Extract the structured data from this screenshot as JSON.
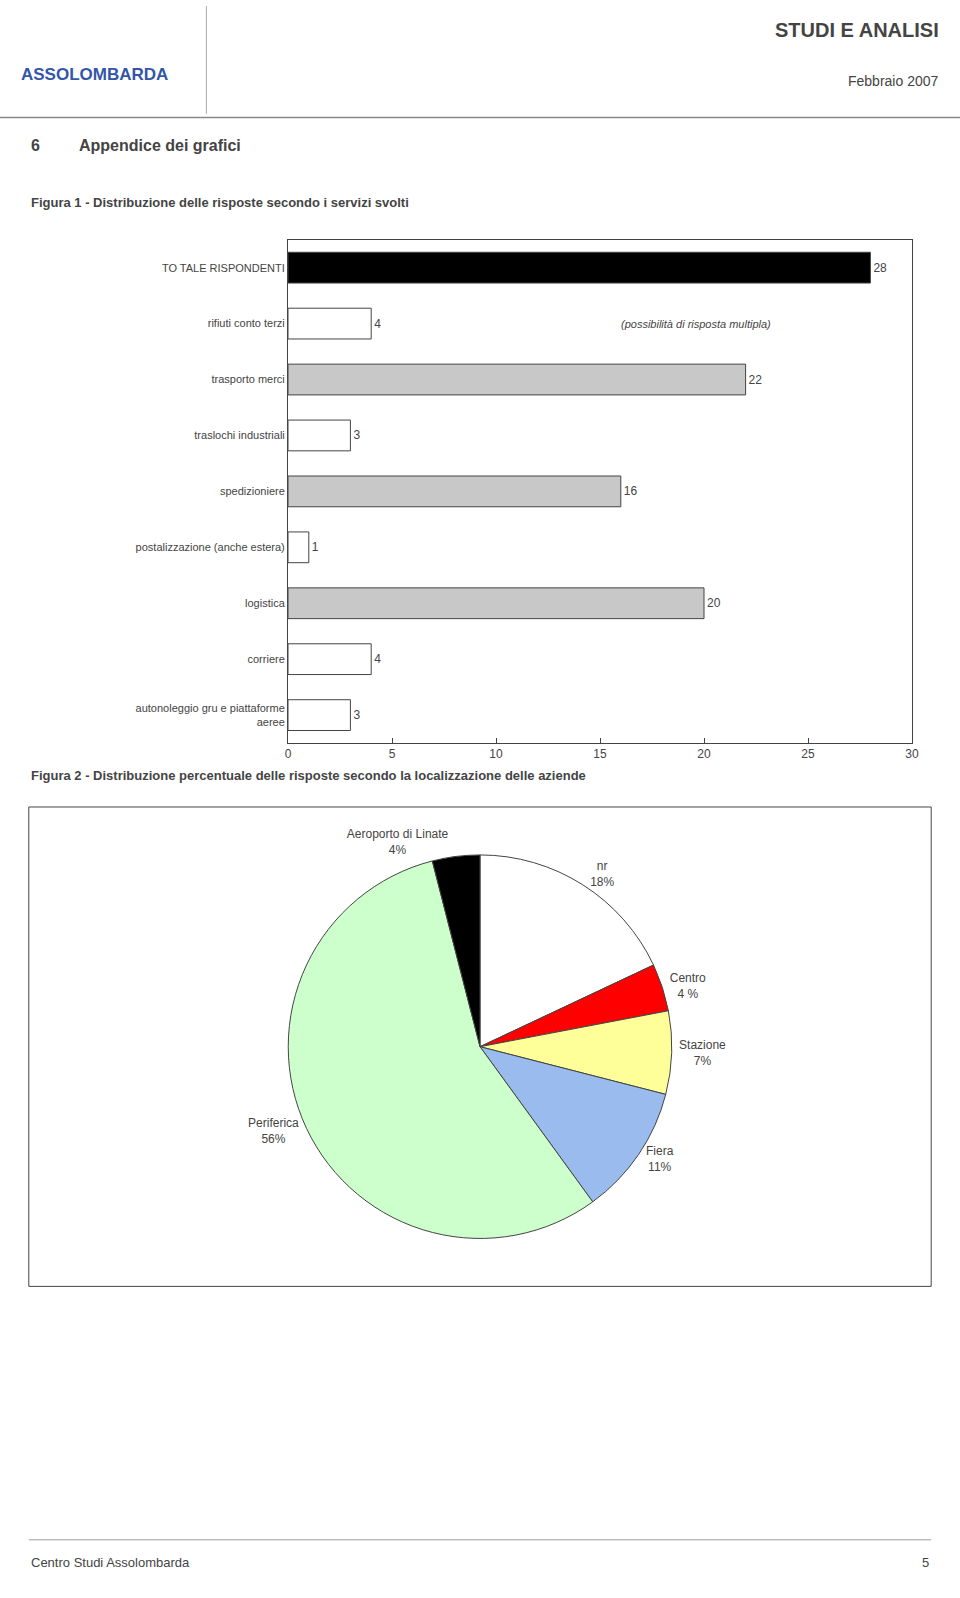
{
  "page": {
    "org_name": "ASSOLOMBARDA",
    "header_title": "STUDI E ANALISI",
    "header_subtitle": "Febbraio 2007",
    "section_number": "6",
    "section_title": "Appendice dei grafici",
    "footer_left": "Centro Studi Assolombarda",
    "footer_right": "5"
  },
  "chart_data": [
    {
      "type": "bar",
      "title": "Figura 1 - Distribuzione delle risposte secondo i servizi svolti",
      "orientation": "horizontal",
      "categories": [
        "TO TALE RISPONDENTI",
        "rifiuti conto terzi",
        "trasporto merci",
        "traslochi industriali",
        "spedizioniere",
        "postalizzazione (anche estera)",
        "logistica",
        "corriere",
        "autonoleggio gru e piattaforme\naeree"
      ],
      "values": [
        28,
        4,
        22,
        3,
        16,
        1,
        20,
        4,
        3
      ],
      "colors": [
        "#000000",
        "#ffffff",
        "#c8c8c8",
        "#ffffff",
        "#c8c8c8",
        "#ffffff",
        "#c8c8c8",
        "#ffffff",
        "#ffffff"
      ],
      "annotations": [
        "(possibilità di risposta multipla)"
      ],
      "xlim": [
        0,
        30
      ],
      "xticks": [
        0,
        5,
        10,
        15,
        20,
        25,
        30
      ],
      "grid": false,
      "data_labels": true
    },
    {
      "type": "pie",
      "title": "Figura 2 - Distribuzione percentuale delle risposte secondo la localizzazione delle aziende",
      "categories": [
        "nr",
        "Centro",
        "Stazione",
        "Fiera",
        "Periferica",
        "Aeroporto di Linate"
      ],
      "values": [
        18,
        4,
        7,
        11,
        56,
        4
      ],
      "value_labels": [
        "18%",
        "4 %",
        "7%",
        "11%",
        "56%",
        "4%"
      ],
      "colors": [
        "#ffffff",
        "#ff0000",
        "#ffff99",
        "#99bbee",
        "#ccffcc",
        "#000000"
      ],
      "data_labels": true
    }
  ]
}
